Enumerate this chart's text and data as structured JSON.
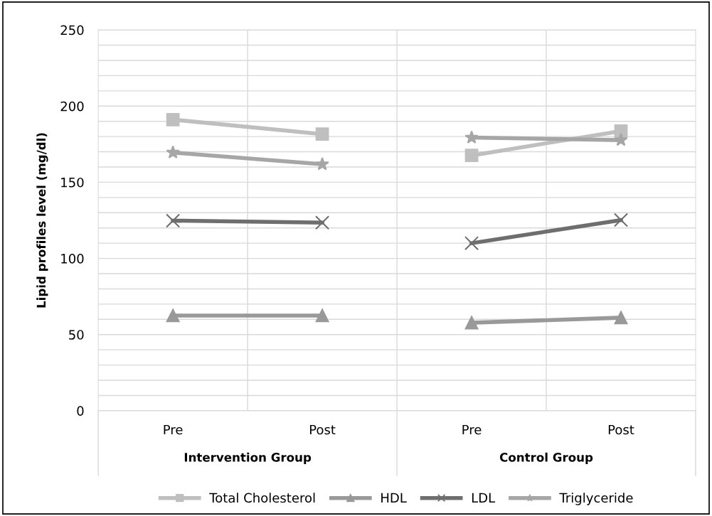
{
  "chart_data": {
    "type": "line",
    "ylabel": "Lipid profiles level (mg/dl)",
    "categories": [
      "Pre",
      "Post",
      "Pre",
      "Post"
    ],
    "annotations": [
      "Intervention Group",
      "Control Group"
    ],
    "series": [
      {
        "name": "Total Cholesterol",
        "color": "#bfbfbf",
        "marker": "square",
        "values": [
          191.1,
          181.6,
          167.6,
          183.6
        ]
      },
      {
        "name": "HDL",
        "color": "#999999",
        "marker": "triangle",
        "values": [
          62.5,
          62.5,
          57.8,
          61.1
        ]
      },
      {
        "name": "LDL",
        "color": "#6e6e6e",
        "marker": "cross",
        "values": [
          124.8,
          123.5,
          110.0,
          125.2
        ]
      },
      {
        "name": "Triglyceride",
        "color": "#a6a6a6",
        "marker": "star",
        "values": [
          169.5,
          161.8,
          179.3,
          177.7
        ]
      }
    ],
    "ylim": [
      0,
      250
    ],
    "yticks": [
      0,
      {
        "value": 10,
        "label": null
      },
      {
        "value": 20,
        "label": null
      },
      {
        "value": 30,
        "label": null
      },
      {
        "value": 40,
        "label": null
      },
      50,
      {
        "value": 60,
        "label": null
      },
      {
        "value": 70,
        "label": null
      },
      {
        "value": 80,
        "label": null
      },
      {
        "value": 90,
        "label": null
      },
      100,
      {
        "value": 110,
        "label": null
      },
      {
        "value": 120,
        "label": null
      },
      {
        "value": 130,
        "label": null
      },
      {
        "value": 140,
        "label": null
      },
      150,
      {
        "value": 160,
        "label": null
      },
      {
        "value": 170,
        "label": null
      },
      {
        "value": 180,
        "label": null
      },
      {
        "value": 190,
        "label": null
      },
      200,
      {
        "value": 210,
        "label": null
      },
      {
        "value": 220,
        "label": null
      },
      {
        "value": 230,
        "label": null
      },
      {
        "value": 240,
        "label": null
      },
      250
    ],
    "grid": true,
    "legend": "bottom",
    "line_style": "solid"
  }
}
